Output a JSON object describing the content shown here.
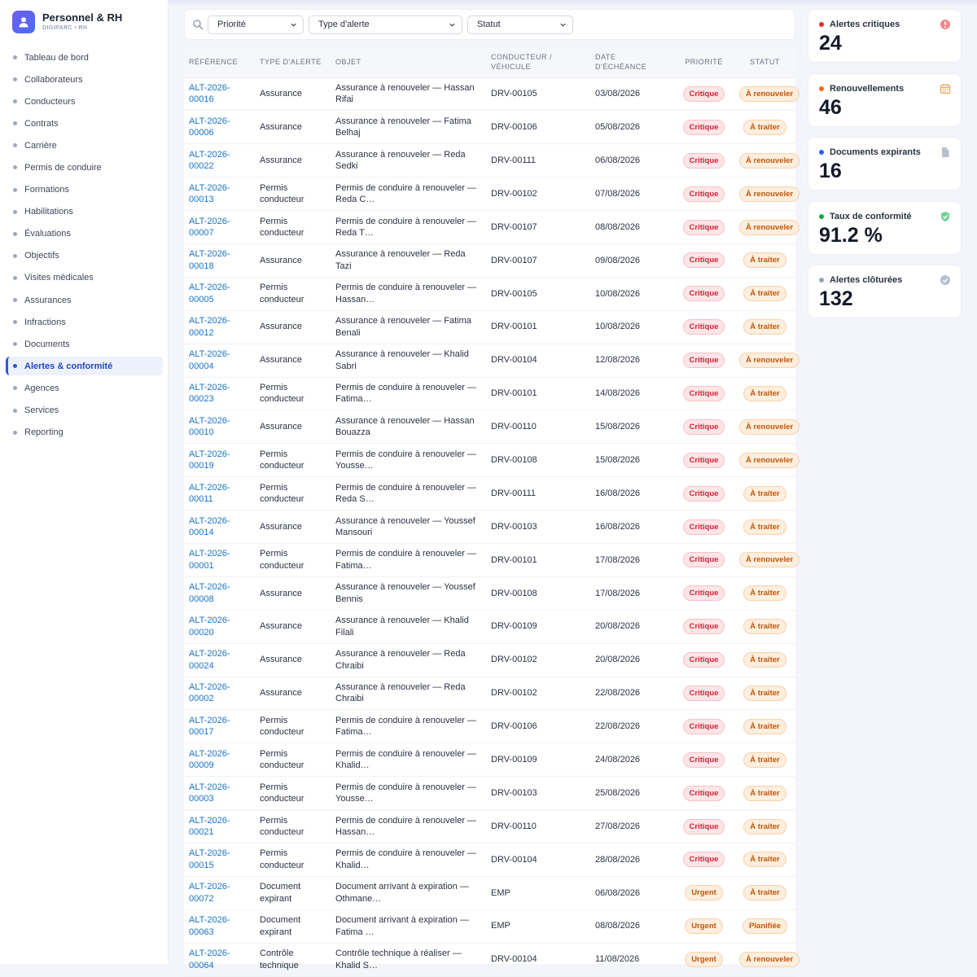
{
  "brand": {
    "title": "Personnel & RH",
    "subtitle": "DIGIPARC • RH"
  },
  "nav": [
    "Tableau de bord",
    "Collaborateurs",
    "Conducteurs",
    "Contrats",
    "Carrière",
    "Permis de conduire",
    "Formations",
    "Habilitations",
    "Évaluations",
    "Objectifs",
    "Visites médicales",
    "Assurances",
    "Infractions",
    "Documents",
    "Alertes & conformité",
    "Agences",
    "Services",
    "Reporting"
  ],
  "nav_active": "Alertes & conformité",
  "filters": {
    "priority": "Priorité",
    "type": "Type d'alerte",
    "status": "Statut"
  },
  "table": {
    "headers": {
      "reference": "RÉFÉRENCE",
      "type": "TYPE D'ALERTE",
      "object": "OBJET",
      "driver": "CONDUCTEUR / VÉHICULE",
      "due": "DATE D'ÉCHÉANCE",
      "priority": "PRIORITÉ",
      "status": "STATUT"
    },
    "rows": [
      {
        "ref": "ALT-2026-\n00016",
        "type": "Assurance",
        "object": "Assurance à renouveler — Hassan Rifai",
        "driver": "DRV-00105",
        "due": "03/08/2026",
        "priority": "Critique",
        "status": "À renouveler"
      },
      {
        "ref": "ALT-2026-\n00006",
        "type": "Assurance",
        "object": "Assurance à renouveler — Fatima Belhaj",
        "driver": "DRV-00106",
        "due": "05/08/2026",
        "priority": "Critique",
        "status": "À traiter"
      },
      {
        "ref": "ALT-2026-\n00022",
        "type": "Assurance",
        "object": "Assurance à renouveler — Reda Sedki",
        "driver": "DRV-00111",
        "due": "06/08/2026",
        "priority": "Critique",
        "status": "À renouveler"
      },
      {
        "ref": "ALT-2026-\n00013",
        "type": "Permis conducteur",
        "object": "Permis de conduire à renouveler — Reda C…",
        "driver": "DRV-00102",
        "due": "07/08/2026",
        "priority": "Critique",
        "status": "À renouveler"
      },
      {
        "ref": "ALT-2026-\n00007",
        "type": "Permis conducteur",
        "object": "Permis de conduire à renouveler — Reda T…",
        "driver": "DRV-00107",
        "due": "08/08/2026",
        "priority": "Critique",
        "status": "À renouveler"
      },
      {
        "ref": "ALT-2026-\n00018",
        "type": "Assurance",
        "object": "Assurance à renouveler — Reda Tazi",
        "driver": "DRV-00107",
        "due": "09/08/2026",
        "priority": "Critique",
        "status": "À traiter"
      },
      {
        "ref": "ALT-2026-\n00005",
        "type": "Permis conducteur",
        "object": "Permis de conduire à renouveler — Hassan…",
        "driver": "DRV-00105",
        "due": "10/08/2026",
        "priority": "Critique",
        "status": "À traiter"
      },
      {
        "ref": "ALT-2026-\n00012",
        "type": "Assurance",
        "object": "Assurance à renouveler — Fatima Benali",
        "driver": "DRV-00101",
        "due": "10/08/2026",
        "priority": "Critique",
        "status": "À traiter"
      },
      {
        "ref": "ALT-2026-\n00004",
        "type": "Assurance",
        "object": "Assurance à renouveler — Khalid Sabri",
        "driver": "DRV-00104",
        "due": "12/08/2026",
        "priority": "Critique",
        "status": "À renouveler"
      },
      {
        "ref": "ALT-2026-\n00023",
        "type": "Permis conducteur",
        "object": "Permis de conduire à renouveler — Fatima…",
        "driver": "DRV-00101",
        "due": "14/08/2026",
        "priority": "Critique",
        "status": "À traiter"
      },
      {
        "ref": "ALT-2026-\n00010",
        "type": "Assurance",
        "object": "Assurance à renouveler — Hassan Bouazza",
        "driver": "DRV-00110",
        "due": "15/08/2026",
        "priority": "Critique",
        "status": "À renouveler"
      },
      {
        "ref": "ALT-2026-\n00019",
        "type": "Permis conducteur",
        "object": "Permis de conduire à renouveler — Yousse…",
        "driver": "DRV-00108",
        "due": "15/08/2026",
        "priority": "Critique",
        "status": "À renouveler"
      },
      {
        "ref": "ALT-2026-\n00011",
        "type": "Permis conducteur",
        "object": "Permis de conduire à renouveler — Reda S…",
        "driver": "DRV-00111",
        "due": "16/08/2026",
        "priority": "Critique",
        "status": "À traiter"
      },
      {
        "ref": "ALT-2026-\n00014",
        "type": "Assurance",
        "object": "Assurance à renouveler — Youssef Mansouri",
        "driver": "DRV-00103",
        "due": "16/08/2026",
        "priority": "Critique",
        "status": "À traiter"
      },
      {
        "ref": "ALT-2026-\n00001",
        "type": "Permis conducteur",
        "object": "Permis de conduire à renouveler — Fatima…",
        "driver": "DRV-00101",
        "due": "17/08/2026",
        "priority": "Critique",
        "status": "À renouveler"
      },
      {
        "ref": "ALT-2026-\n00008",
        "type": "Assurance",
        "object": "Assurance à renouveler — Youssef Bennis",
        "driver": "DRV-00108",
        "due": "17/08/2026",
        "priority": "Critique",
        "status": "À traiter"
      },
      {
        "ref": "ALT-2026-\n00020",
        "type": "Assurance",
        "object": "Assurance à renouveler — Khalid Filali",
        "driver": "DRV-00109",
        "due": "20/08/2026",
        "priority": "Critique",
        "status": "À traiter"
      },
      {
        "ref": "ALT-2026-\n00024",
        "type": "Assurance",
        "object": "Assurance à renouveler — Reda Chraibi",
        "driver": "DRV-00102",
        "due": "20/08/2026",
        "priority": "Critique",
        "status": "À traiter"
      },
      {
        "ref": "ALT-2026-\n00002",
        "type": "Assurance",
        "object": "Assurance à renouveler — Reda Chraibi",
        "driver": "DRV-00102",
        "due": "22/08/2026",
        "priority": "Critique",
        "status": "À traiter"
      },
      {
        "ref": "ALT-2026-\n00017",
        "type": "Permis conducteur",
        "object": "Permis de conduire à renouveler — Fatima…",
        "driver": "DRV-00106",
        "due": "22/08/2026",
        "priority": "Critique",
        "status": "À traiter"
      },
      {
        "ref": "ALT-2026-\n00009",
        "type": "Permis conducteur",
        "object": "Permis de conduire à renouveler — Khalid…",
        "driver": "DRV-00109",
        "due": "24/08/2026",
        "priority": "Critique",
        "status": "À traiter"
      },
      {
        "ref": "ALT-2026-\n00003",
        "type": "Permis conducteur",
        "object": "Permis de conduire à renouveler — Yousse…",
        "driver": "DRV-00103",
        "due": "25/08/2026",
        "priority": "Critique",
        "status": "À traiter"
      },
      {
        "ref": "ALT-2026-\n00021",
        "type": "Permis conducteur",
        "object": "Permis de conduire à renouveler — Hassan…",
        "driver": "DRV-00110",
        "due": "27/08/2026",
        "priority": "Critique",
        "status": "À traiter"
      },
      {
        "ref": "ALT-2026-\n00015",
        "type": "Permis conducteur",
        "object": "Permis de conduire à renouveler — Khalid…",
        "driver": "DRV-00104",
        "due": "28/08/2026",
        "priority": "Critique",
        "status": "À traiter"
      },
      {
        "ref": "ALT-2026-\n00072",
        "type": "Document expirant",
        "object": "Document arrivant à expiration — Othmane…",
        "driver": "EMP",
        "due": "06/08/2026",
        "priority": "Urgent",
        "status": "À traiter"
      },
      {
        "ref": "ALT-2026-\n00063",
        "type": "Document expirant",
        "object": "Document arrivant à expiration — Fatima …",
        "driver": "EMP",
        "due": "08/08/2026",
        "priority": "Urgent",
        "status": "Planifiée"
      },
      {
        "ref": "ALT-2026-\n00064",
        "type": "Contrôle technique",
        "object": "Contrôle technique à réaliser — Khalid S…",
        "driver": "DRV-00104",
        "due": "11/08/2026",
        "priority": "Urgent",
        "status": "À renouveler"
      }
    ]
  },
  "kpis": [
    {
      "label": "Alertes critiques",
      "value": "24",
      "dot": "#e03131",
      "icon": "alert-circle-icon",
      "icon_color": "#f08a8a"
    },
    {
      "label": "Renouvellements",
      "value": "46",
      "dot": "#f06a1a",
      "icon": "calendar-icon",
      "icon_color": "#f5a55e"
    },
    {
      "label": "Documents expirants",
      "value": "16",
      "dot": "#2563eb",
      "icon": "document-icon",
      "icon_color": "#b8bfcc"
    },
    {
      "label": "Taux de conformité",
      "value": "91.2 %",
      "dot": "#16a34a",
      "icon": "shield-check-icon",
      "icon_color": "#6fd39a"
    },
    {
      "label": "Alertes clôturées",
      "value": "132",
      "dot": "#9aa3b5",
      "icon": "check-circle-icon",
      "icon_color": "#b8bfcc"
    }
  ]
}
